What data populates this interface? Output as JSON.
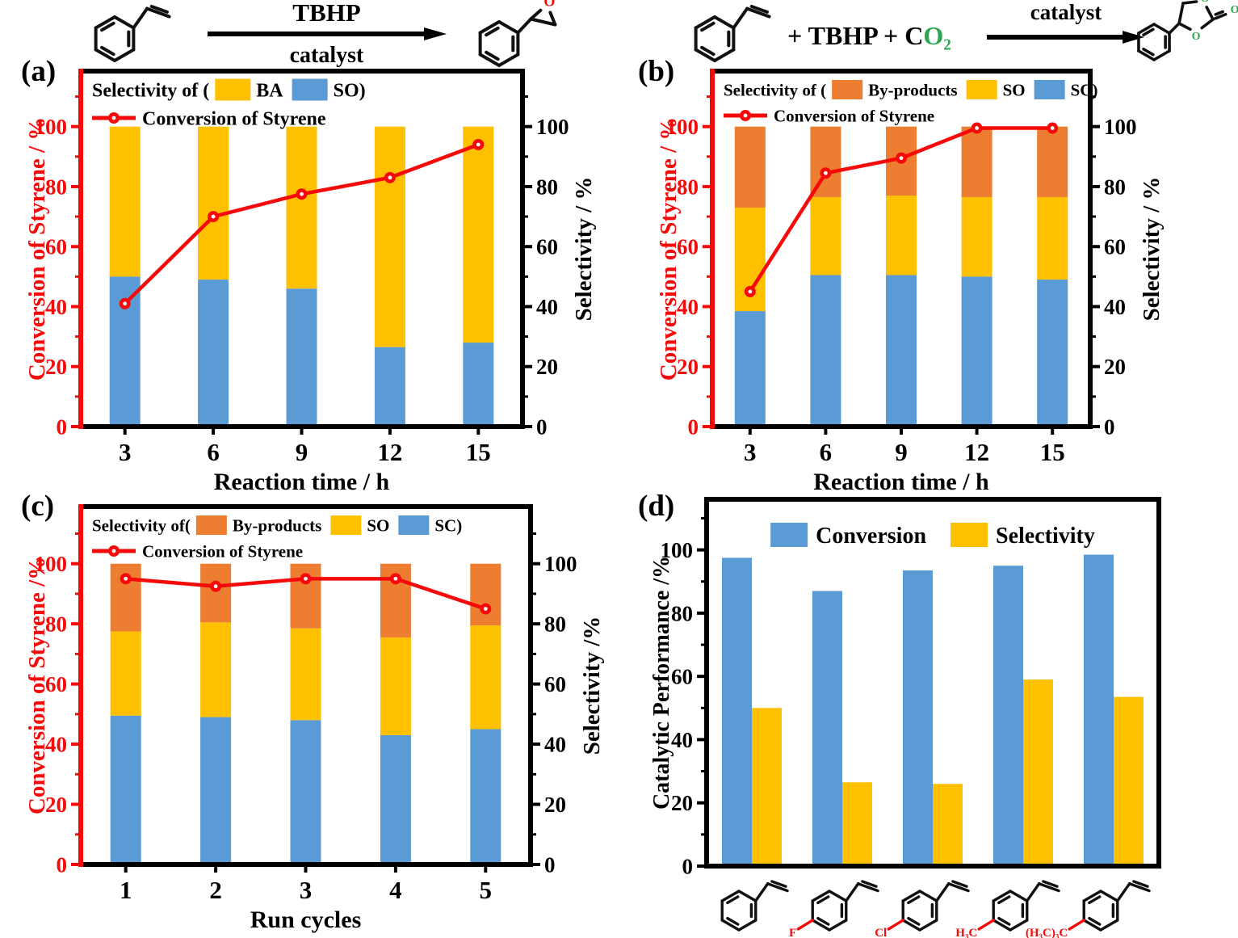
{
  "colors": {
    "blue": "#5B9BD5",
    "yellow": "#FFC000",
    "orange": "#ED7D31",
    "red": "#F60909",
    "green": "#2EA84E",
    "black": "#000000"
  },
  "panels": {
    "a": "(a)",
    "b": "(b)",
    "c": "(c)",
    "d": "(d)"
  },
  "schemes": {
    "epoxidation": {
      "above_arrow": "TBHP",
      "below_arrow": "catalyst",
      "oxygen_label": "O"
    },
    "carbonation": {
      "reagents_prefix": "+ TBHP + ",
      "co2_c": "C",
      "co2_o2": "O₂",
      "above_arrow": "catalyst",
      "oxygen_label": "O"
    }
  },
  "chart_data": [
    {
      "id": "a",
      "type": "bar",
      "subtype": "stacked_bar_line",
      "categories": [
        "3",
        "6",
        "9",
        "12",
        "15"
      ],
      "xlabel": "Reaction time / h",
      "left_axis": {
        "label": "Conversion of Styrene / %",
        "color_key": "red",
        "ticks": [
          0,
          20,
          40,
          60,
          80,
          100
        ]
      },
      "right_axis": {
        "label": "Selectivity / %",
        "ticks": [
          0,
          20,
          40,
          60,
          80,
          100
        ]
      },
      "ylim": [
        0,
        118.5
      ],
      "bar_series": [
        {
          "name": "SO",
          "color_key": "blue",
          "values": [
            50,
            49,
            46,
            26.5,
            28
          ]
        },
        {
          "name": "BA",
          "color_key": "yellow",
          "values": [
            50,
            51,
            54,
            73.5,
            72
          ]
        }
      ],
      "line_series": {
        "name": "Conversion of Styrene",
        "color_key": "red",
        "values": [
          41,
          70,
          77.5,
          83,
          94
        ]
      },
      "legend": {
        "prefix": "Selectivity of (",
        "suffix": ")",
        "entries": [
          {
            "label": "BA",
            "color_key": "yellow"
          },
          {
            "label": "SO",
            "color_key": "blue"
          }
        ],
        "line_label": "Conversion of Styrene"
      }
    },
    {
      "id": "b",
      "type": "bar",
      "subtype": "stacked_bar_line",
      "categories": [
        "3",
        "6",
        "9",
        "12",
        "15"
      ],
      "xlabel": "Reaction time / h",
      "left_axis": {
        "label": "Conversion of Styrene / %",
        "color_key": "red",
        "ticks": [
          0,
          20,
          40,
          60,
          80,
          100
        ]
      },
      "right_axis": {
        "label": "Selectivity / %",
        "ticks": [
          0,
          20,
          40,
          60,
          80,
          100
        ]
      },
      "ylim": [
        0,
        118.5
      ],
      "bar_series": [
        {
          "name": "SC",
          "color_key": "blue",
          "values": [
            38.5,
            50.5,
            50.5,
            50,
            49
          ]
        },
        {
          "name": "SO",
          "color_key": "yellow",
          "values": [
            34.5,
            26,
            26.5,
            26.5,
            27.5
          ]
        },
        {
          "name": "By-products",
          "color_key": "orange",
          "values": [
            27,
            23.5,
            23,
            23.5,
            23.5
          ]
        }
      ],
      "line_series": {
        "name": "Conversion of Styrene",
        "color_key": "red",
        "values": [
          45,
          84.5,
          89.5,
          99.5,
          99.5
        ]
      },
      "legend": {
        "prefix": "Selectivity of (",
        "suffix": ")",
        "entries": [
          {
            "label": "By-products",
            "color_key": "orange"
          },
          {
            "label": "SO",
            "color_key": "yellow"
          },
          {
            "label": "SC",
            "color_key": "blue"
          }
        ],
        "line_label": "Conversion of Styrene"
      }
    },
    {
      "id": "c",
      "type": "bar",
      "subtype": "stacked_bar_line",
      "categories": [
        "1",
        "2",
        "3",
        "4",
        "5"
      ],
      "xlabel": "Run cycles",
      "left_axis": {
        "label": "Conversion of Styrene /%",
        "color_key": "red",
        "ticks": [
          0,
          20,
          40,
          60,
          80,
          100
        ]
      },
      "right_axis": {
        "label": "Selectivity /%",
        "ticks": [
          0,
          20,
          40,
          60,
          80,
          100
        ]
      },
      "ylim": [
        0,
        119
      ],
      "bar_series": [
        {
          "name": "SC",
          "color_key": "blue",
          "values": [
            49.5,
            49,
            48,
            43,
            45
          ]
        },
        {
          "name": "SO",
          "color_key": "yellow",
          "values": [
            28,
            31.5,
            30.5,
            32.5,
            34.5
          ]
        },
        {
          "name": "By-products",
          "color_key": "orange",
          "values": [
            22.5,
            19.5,
            21.5,
            24.5,
            20.5
          ]
        }
      ],
      "line_series": {
        "name": "Conversion of Styrene",
        "color_key": "red",
        "values": [
          95,
          92.5,
          95,
          95,
          85
        ]
      },
      "legend": {
        "prefix": "Selectivity of(",
        "suffix": ")",
        "entries": [
          {
            "label": "By-products",
            "color_key": "orange"
          },
          {
            "label": "SO",
            "color_key": "yellow"
          },
          {
            "label": "SC",
            "color_key": "blue"
          }
        ],
        "line_label": "Conversion of Styrene"
      }
    },
    {
      "id": "d",
      "type": "bar",
      "subtype": "grouped_bar",
      "categories": [
        "styrene",
        "4-fluorostyrene",
        "4-chlorostyrene",
        "4-methylstyrene",
        "4-tert-butylstyrene"
      ],
      "substituent_labels": [
        "",
        "F",
        "Cl",
        "H₃C",
        "(H₃C)₃C"
      ],
      "left_axis": {
        "label": "Catalytic Performance /%",
        "color_key": "black",
        "ticks": [
          0,
          20,
          40,
          60,
          80,
          100
        ]
      },
      "ylim": [
        0,
        116
      ],
      "series": [
        {
          "name": "Conversion",
          "color_key": "blue",
          "values": [
            97.5,
            87,
            93.5,
            95,
            98.5
          ]
        },
        {
          "name": "Selectivity",
          "color_key": "yellow",
          "values": [
            50,
            26.5,
            26,
            59,
            53.5
          ]
        }
      ]
    }
  ]
}
